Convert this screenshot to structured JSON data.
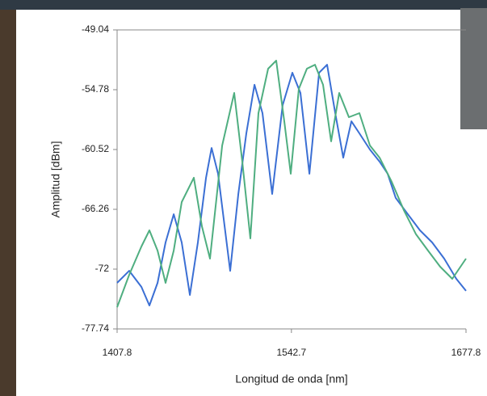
{
  "chart_data": {
    "type": "line",
    "ylabel": "Amplitud [dBm]",
    "xlabel": "Longitud de onda [nm]",
    "xlim": [
      1407.8,
      1677.8
    ],
    "xticks": [
      1407.8,
      1542.7,
      1677.8
    ],
    "ylim": [
      -77.74,
      -49.04
    ],
    "yticks": [
      -77.74,
      -72,
      -66.26,
      -60.52,
      -54.78,
      -49.04
    ],
    "series": [
      {
        "color": "#3b6fd4",
        "x": [
          1407.8,
          1417.2,
          1426.6,
          1432.8,
          1439.1,
          1445.3,
          1451.6,
          1457.8,
          1464.1,
          1470.3,
          1476.6,
          1480.9,
          1485.9,
          1495.3,
          1501.6,
          1507.8,
          1514.1,
          1520.3,
          1527.8,
          1535.9,
          1543.4,
          1549.7,
          1556.6,
          1564.1,
          1570.3,
          1576.6,
          1582.8,
          1589.1,
          1595.3,
          1603.4,
          1610.9,
          1617.2,
          1623.4,
          1632.8,
          1642.2,
          1651.6,
          1660.9,
          1670.3,
          1677.8
        ],
        "values": [
          -73.32,
          -72.16,
          -73.71,
          -75.49,
          -73.32,
          -69.44,
          -66.73,
          -69.44,
          -74.48,
          -69.44,
          -63.23,
          -60.37,
          -62.85,
          -72.16,
          -64.79,
          -58.97,
          -54.31,
          -57.03,
          -64.79,
          -56.25,
          -53.15,
          -55.09,
          -62.85,
          -53.15,
          -52.38,
          -57.03,
          -61.3,
          -57.81,
          -58.97,
          -60.52,
          -61.68,
          -62.85,
          -65.17,
          -66.73,
          -68.28,
          -69.44,
          -70.99,
          -72.93,
          -74.09
        ]
      },
      {
        "color": "#4fae80",
        "x": [
          1407.8,
          1417.2,
          1426.6,
          1432.8,
          1439.1,
          1445.3,
          1451.6,
          1457.8,
          1467.2,
          1473.4,
          1479.7,
          1489.1,
          1498.4,
          1504.7,
          1510.9,
          1517.2,
          1524.7,
          1530.9,
          1537.2,
          1542.2,
          1548.4,
          1554.7,
          1560.9,
          1567.2,
          1573.4,
          1579.7,
          1587.2,
          1595.3,
          1603.4,
          1610.9,
          1620.3,
          1629.7,
          1639.1,
          1648.4,
          1657.8,
          1667.2,
          1677.8
        ],
        "values": [
          -75.65,
          -72.54,
          -69.83,
          -68.28,
          -70.22,
          -73.32,
          -70.22,
          -65.56,
          -63.23,
          -67.89,
          -70.99,
          -60.13,
          -55.09,
          -61.68,
          -69.05,
          -57.03,
          -52.76,
          -51.99,
          -57.81,
          -62.85,
          -54.7,
          -52.76,
          -52.38,
          -54.31,
          -59.74,
          -55.09,
          -57.42,
          -57.03,
          -60.13,
          -61.3,
          -63.62,
          -66.34,
          -68.66,
          -70.22,
          -71.77,
          -72.93,
          -70.99
        ]
      }
    ]
  }
}
